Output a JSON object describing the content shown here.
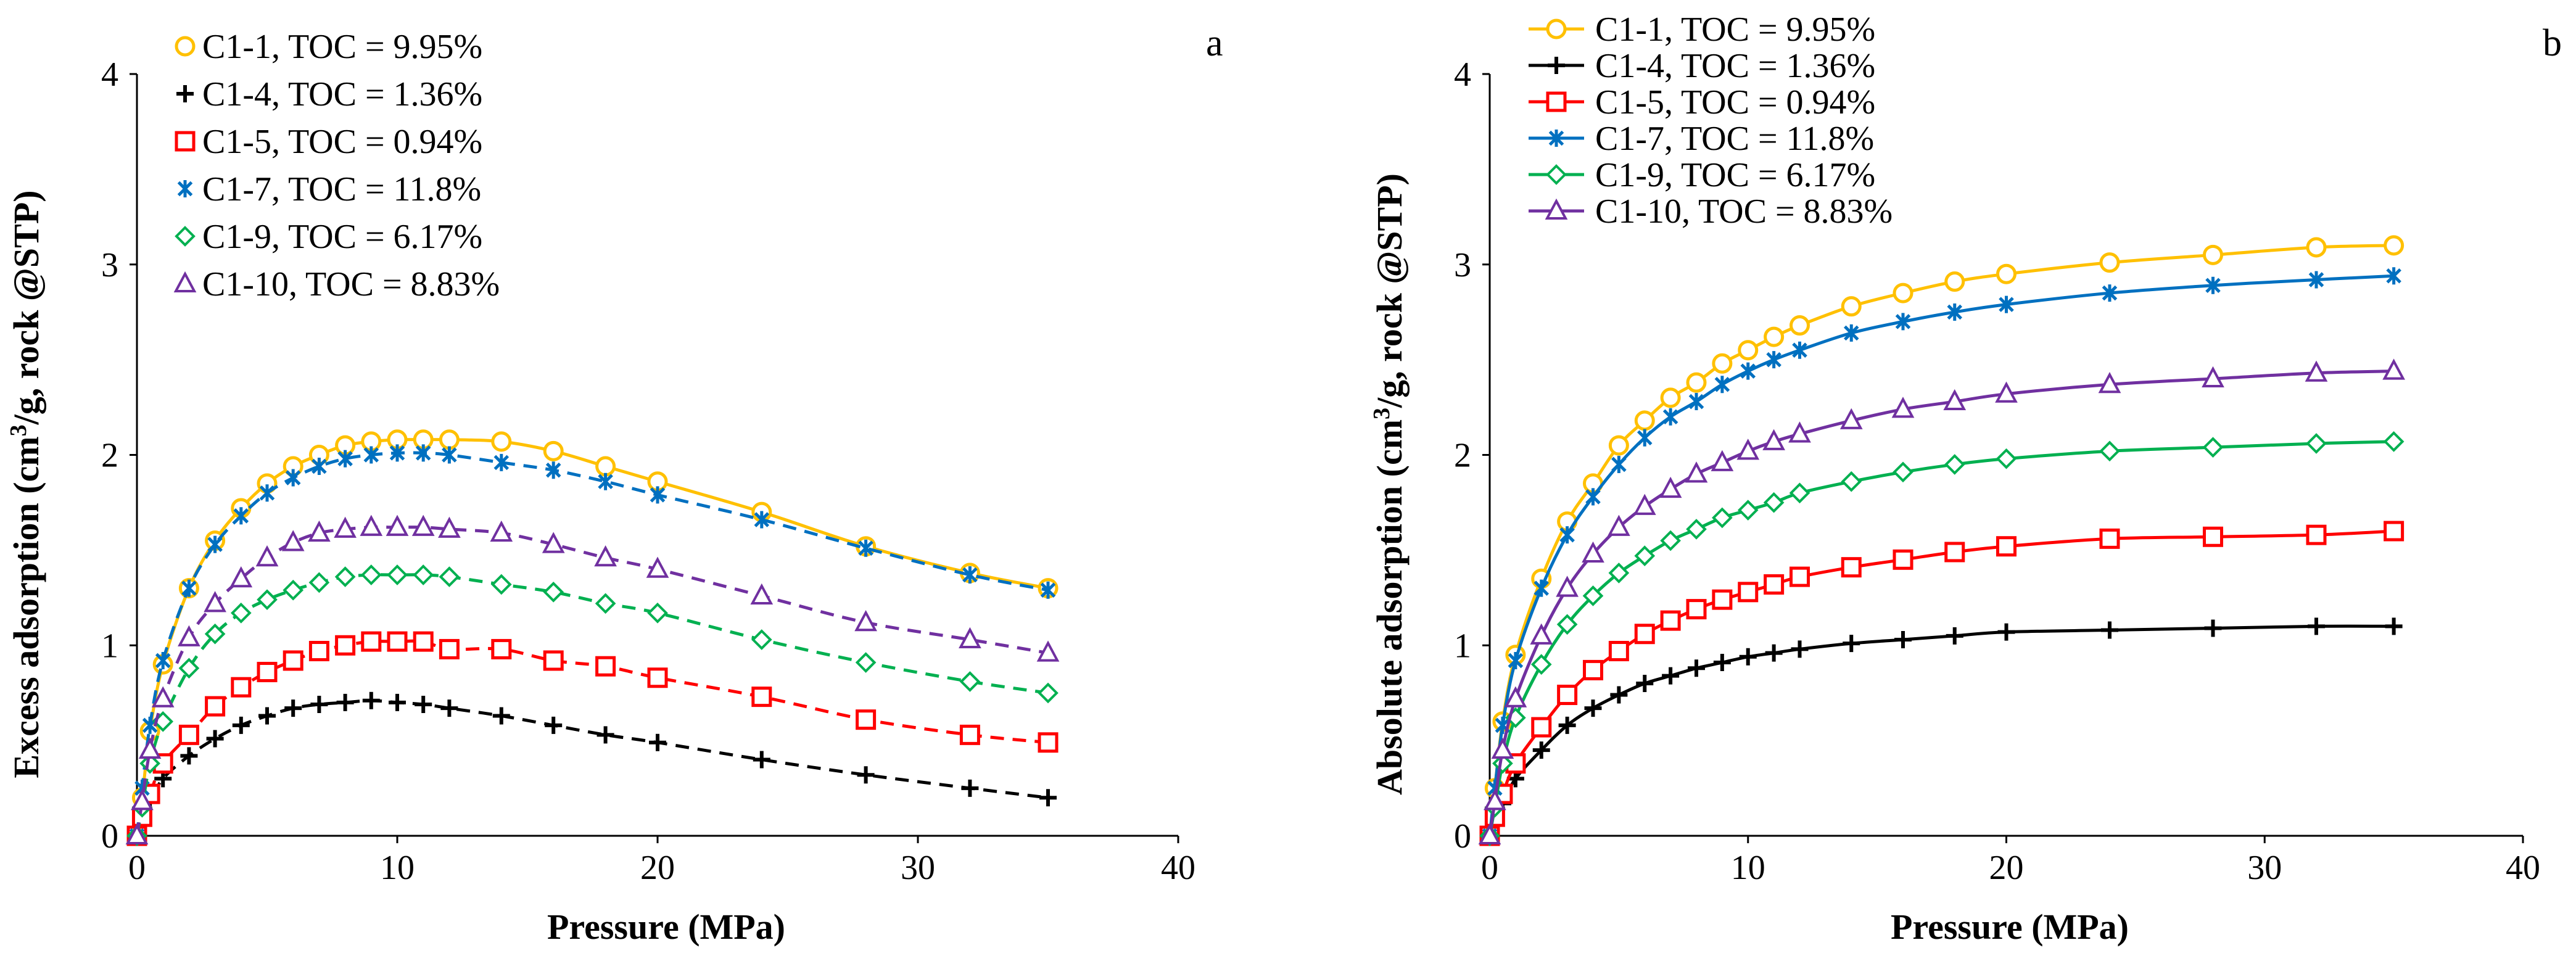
{
  "chart_data": [
    {
      "type": "scatter",
      "panel_label": "a",
      "xlabel": "Pressure (MPa)",
      "ylabel_main": "Excess adsorption (cm",
      "ylabel_sup": "3",
      "ylabel_rest": "/g, rock @STP)",
      "xlim": [
        0,
        40
      ],
      "ylim": [
        0,
        4
      ],
      "xticks": [
        "0",
        "10",
        "20",
        "30",
        "40"
      ],
      "yticks": [
        "0",
        "1",
        "2",
        "3",
        "4"
      ],
      "grid": false,
      "legend_position": "top-left",
      "series": [
        {
          "name": "C1-1, TOC = 9.95%",
          "color": "#FFC000",
          "marker": "circle",
          "fit_style": "solid",
          "x": [
            0,
            0.2,
            0.5,
            1,
            2,
            3,
            4,
            5,
            6,
            7,
            8,
            9,
            10,
            11,
            12,
            14,
            16,
            18,
            20,
            24,
            28,
            32,
            35
          ],
          "y": [
            0,
            0.2,
            0.55,
            0.9,
            1.3,
            1.55,
            1.72,
            1.85,
            1.94,
            2.0,
            2.05,
            2.07,
            2.08,
            2.08,
            2.08,
            2.07,
            2.02,
            1.94,
            1.86,
            1.7,
            1.52,
            1.38,
            1.3
          ]
        },
        {
          "name": "C1-4, TOC = 1.36%",
          "color": "#000000",
          "marker": "plus",
          "fit_style": "dashed",
          "x": [
            0,
            0.2,
            0.5,
            1,
            2,
            3,
            4,
            5,
            6,
            7,
            8,
            9,
            10,
            11,
            12,
            14,
            16,
            18,
            20,
            24,
            28,
            32,
            35
          ],
          "y": [
            0,
            0.08,
            0.18,
            0.3,
            0.42,
            0.51,
            0.58,
            0.63,
            0.67,
            0.69,
            0.7,
            0.71,
            0.7,
            0.69,
            0.67,
            0.63,
            0.58,
            0.53,
            0.49,
            0.4,
            0.32,
            0.25,
            0.2
          ]
        },
        {
          "name": "C1-5, TOC = 0.94%",
          "color": "#FF0000",
          "marker": "square",
          "fit_style": "dashed",
          "x": [
            0,
            0.2,
            0.5,
            1,
            2,
            3,
            4,
            5,
            6,
            7,
            8,
            9,
            10,
            11,
            12,
            14,
            16,
            18,
            20,
            24,
            28,
            32,
            35
          ],
          "y": [
            0,
            0.1,
            0.22,
            0.38,
            0.53,
            0.68,
            0.78,
            0.86,
            0.92,
            0.97,
            1.0,
            1.02,
            1.02,
            1.02,
            0.98,
            0.98,
            0.92,
            0.89,
            0.83,
            0.73,
            0.61,
            0.53,
            0.49
          ]
        },
        {
          "name": "C1-7, TOC = 11.8%",
          "color": "#0070C0",
          "marker": "asterisk",
          "fit_style": "dashed",
          "x": [
            0,
            0.2,
            0.5,
            1,
            2,
            3,
            4,
            5,
            6,
            7,
            8,
            9,
            10,
            11,
            12,
            14,
            16,
            18,
            20,
            24,
            28,
            32,
            35
          ],
          "y": [
            0,
            0.25,
            0.58,
            0.92,
            1.3,
            1.53,
            1.68,
            1.8,
            1.88,
            1.94,
            1.98,
            2.0,
            2.01,
            2.01,
            2.0,
            1.96,
            1.92,
            1.86,
            1.79,
            1.66,
            1.51,
            1.37,
            1.29
          ]
        },
        {
          "name": "C1-9, TOC = 6.17%",
          "color": "#00B050",
          "marker": "diamond",
          "fit_style": "dashed",
          "x": [
            0,
            0.2,
            0.5,
            1,
            2,
            3,
            4,
            5,
            6,
            7,
            8,
            9,
            10,
            11,
            12,
            14,
            16,
            18,
            20,
            24,
            28,
            32,
            35
          ],
          "y": [
            0,
            0.15,
            0.38,
            0.6,
            0.88,
            1.06,
            1.17,
            1.24,
            1.29,
            1.33,
            1.36,
            1.37,
            1.37,
            1.37,
            1.36,
            1.32,
            1.28,
            1.22,
            1.17,
            1.03,
            0.91,
            0.81,
            0.75
          ]
        },
        {
          "name": "C1-10, TOC = 8.83%",
          "color": "#7030A0",
          "marker": "triangle",
          "fit_style": "dashed",
          "x": [
            0,
            0.2,
            0.5,
            1,
            2,
            3,
            4,
            5,
            6,
            7,
            8,
            9,
            10,
            11,
            12,
            14,
            16,
            18,
            20,
            24,
            28,
            32,
            35
          ],
          "y": [
            0,
            0.18,
            0.45,
            0.72,
            1.04,
            1.22,
            1.35,
            1.46,
            1.54,
            1.59,
            1.61,
            1.62,
            1.62,
            1.62,
            1.61,
            1.59,
            1.53,
            1.46,
            1.4,
            1.26,
            1.12,
            1.03,
            0.96
          ]
        }
      ]
    },
    {
      "type": "line",
      "panel_label": "b",
      "xlabel": "Pressure (MPa)",
      "ylabel_main": "Absolute adsorption (cm",
      "ylabel_sup": "3",
      "ylabel_rest": "/g, rock @STP)",
      "xlim": [
        0,
        40
      ],
      "ylim": [
        0,
        4
      ],
      "xticks": [
        "0",
        "10",
        "20",
        "30",
        "40"
      ],
      "yticks": [
        "0",
        "1",
        "2",
        "3",
        "4"
      ],
      "grid": false,
      "legend_position": "top-left",
      "series": [
        {
          "name": "C1-1, TOC = 9.95%",
          "color": "#FFC000",
          "marker": "circle",
          "x": [
            0,
            0.2,
            0.5,
            1,
            2,
            3,
            4,
            5,
            6,
            7,
            8,
            9,
            10,
            11,
            12,
            14,
            16,
            18,
            20,
            24,
            28,
            32,
            35
          ],
          "y": [
            0,
            0.25,
            0.6,
            0.95,
            1.35,
            1.65,
            1.85,
            2.05,
            2.18,
            2.3,
            2.38,
            2.48,
            2.55,
            2.62,
            2.68,
            2.78,
            2.85,
            2.91,
            2.95,
            3.01,
            3.05,
            3.09,
            3.1
          ]
        },
        {
          "name": "C1-4, TOC = 1.36%",
          "color": "#000000",
          "marker": "plus",
          "x": [
            0,
            0.2,
            0.5,
            1,
            2,
            3,
            4,
            5,
            6,
            7,
            8,
            9,
            10,
            11,
            12,
            14,
            16,
            18,
            20,
            24,
            28,
            32,
            35
          ],
          "y": [
            0,
            0.07,
            0.17,
            0.3,
            0.45,
            0.58,
            0.67,
            0.74,
            0.8,
            0.84,
            0.88,
            0.91,
            0.94,
            0.96,
            0.98,
            1.01,
            1.03,
            1.05,
            1.07,
            1.08,
            1.09,
            1.1,
            1.1
          ]
        },
        {
          "name": "C1-5, TOC = 0.94%",
          "color": "#FF0000",
          "marker": "square",
          "x": [
            0,
            0.2,
            0.5,
            1,
            2,
            3,
            4,
            5,
            6,
            7,
            8,
            9,
            10,
            11,
            12,
            14,
            16,
            18,
            20,
            24,
            28,
            32,
            35
          ],
          "y": [
            0,
            0.1,
            0.22,
            0.38,
            0.57,
            0.74,
            0.87,
            0.97,
            1.06,
            1.13,
            1.19,
            1.24,
            1.28,
            1.32,
            1.36,
            1.41,
            1.45,
            1.49,
            1.52,
            1.56,
            1.57,
            1.58,
            1.6
          ]
        },
        {
          "name": "C1-7, TOC = 11.8%",
          "color": "#0070C0",
          "marker": "asterisk",
          "x": [
            0,
            0.2,
            0.5,
            1,
            2,
            3,
            4,
            5,
            6,
            7,
            8,
            9,
            10,
            11,
            12,
            14,
            16,
            18,
            20,
            24,
            28,
            32,
            35
          ],
          "y": [
            0,
            0.25,
            0.58,
            0.92,
            1.3,
            1.58,
            1.78,
            1.95,
            2.09,
            2.2,
            2.28,
            2.37,
            2.44,
            2.5,
            2.55,
            2.64,
            2.7,
            2.75,
            2.79,
            2.85,
            2.89,
            2.92,
            2.94
          ]
        },
        {
          "name": "C1-9, TOC = 6.17%",
          "color": "#00B050",
          "marker": "diamond",
          "x": [
            0,
            0.2,
            0.5,
            1,
            2,
            3,
            4,
            5,
            6,
            7,
            8,
            9,
            10,
            11,
            12,
            14,
            16,
            18,
            20,
            24,
            28,
            32,
            35
          ],
          "y": [
            0,
            0.15,
            0.38,
            0.62,
            0.9,
            1.11,
            1.26,
            1.38,
            1.47,
            1.55,
            1.61,
            1.67,
            1.71,
            1.75,
            1.8,
            1.86,
            1.91,
            1.95,
            1.98,
            2.02,
            2.04,
            2.06,
            2.07
          ]
        },
        {
          "name": "C1-10, TOC = 8.83%",
          "color": "#7030A0",
          "marker": "triangle",
          "x": [
            0,
            0.2,
            0.5,
            1,
            2,
            3,
            4,
            5,
            6,
            7,
            8,
            9,
            10,
            11,
            12,
            14,
            16,
            18,
            20,
            24,
            28,
            32,
            35
          ],
          "y": [
            0,
            0.18,
            0.45,
            0.72,
            1.05,
            1.3,
            1.48,
            1.62,
            1.73,
            1.82,
            1.9,
            1.96,
            2.02,
            2.07,
            2.11,
            2.18,
            2.24,
            2.28,
            2.32,
            2.37,
            2.4,
            2.43,
            2.44
          ]
        }
      ]
    }
  ]
}
